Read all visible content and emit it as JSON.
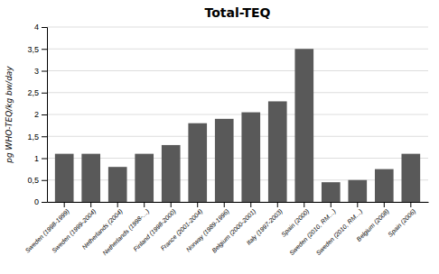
{
  "chart_data": {
    "type": "bar",
    "title": "Total-TEQ",
    "ylabel": "pg WHO-TEQ/kg bw/day",
    "categories": [
      "Sweden (1998-1999)",
      "Sweden (1999-2004)",
      "Netherlands (2004)",
      "Netherlands (1998-…)",
      "Finland (1998-2000)",
      "France (2001-2004)",
      "Norway (1989-1996)",
      "Belgium (2000-2001)",
      "Italy (1997-2003)",
      "Spain (2000)",
      "Sweden (2010, RM…)",
      "Sweden (2010, RM…)",
      "Belgium (2008)",
      "Spain (2006)"
    ],
    "values": [
      1.1,
      1.1,
      0.8,
      1.1,
      1.3,
      1.8,
      1.9,
      2.05,
      2.3,
      3.5,
      0.45,
      0.5,
      0.75,
      1.1
    ],
    "color": "#595959",
    "ylim": [
      0,
      4
    ],
    "yticks": [
      0,
      {
        "value": 0.5,
        "label": "0,5"
      },
      1,
      {
        "value": 1.5,
        "label": "1,5"
      },
      2,
      {
        "value": 2.5,
        "label": "2,5"
      },
      3,
      {
        "value": 3.5,
        "label": "3,5"
      },
      4
    ],
    "grid": true
  }
}
